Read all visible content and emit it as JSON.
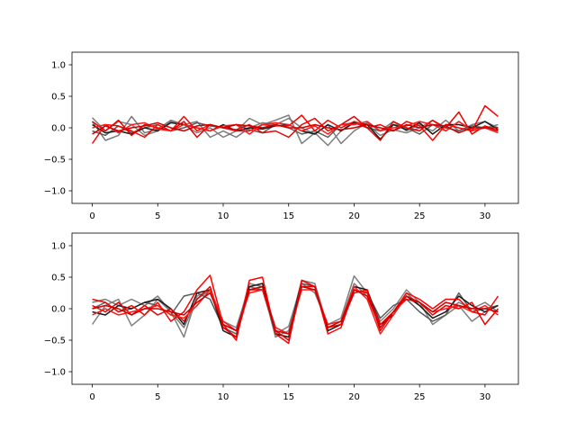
{
  "chart_data": [
    {
      "type": "line",
      "title": "",
      "xlabel": "",
      "ylabel": "",
      "xlim": [
        -1.55,
        32.55
      ],
      "ylim": [
        -1.2,
        1.2
      ],
      "xticks": [
        0,
        5,
        10,
        15,
        20,
        25,
        30
      ],
      "yticks": [
        -1.0,
        -0.5,
        0.0,
        0.5,
        1.0
      ],
      "ytick_labels": [
        "−1.0",
        "−0.5",
        "0.0",
        "0.5",
        "1.0"
      ],
      "grid": false,
      "legend": "none",
      "x": [
        0,
        1,
        2,
        3,
        4,
        5,
        6,
        7,
        8,
        9,
        10,
        11,
        12,
        13,
        14,
        15,
        16,
        17,
        18,
        19,
        20,
        21,
        22,
        23,
        24,
        25,
        26,
        27,
        28,
        29,
        30,
        31
      ],
      "series": [
        {
          "color": "#808080",
          "values": [
            0.16,
            -0.05,
            0.1,
            0.05,
            -0.12,
            -0.05,
            0.1,
            0.05,
            -0.08,
            0.0,
            -0.15,
            -0.05,
            0.15,
            0.05,
            0.12,
            0.2,
            -0.25,
            -0.08,
            -0.28,
            -0.05,
            0.1,
            0.05,
            -0.12,
            -0.03,
            -0.08,
            0.0,
            0.12,
            -0.05,
            0.1,
            -0.03,
            0.0,
            0.05
          ]
        },
        {
          "color": "#7a7a7a",
          "values": [
            0.1,
            -0.2,
            -0.12,
            0.18,
            -0.08,
            -0.02,
            0.12,
            0.05,
            0.1,
            -0.15,
            -0.05,
            -0.15,
            0.0,
            0.08,
            0.05,
            0.15,
            0.0,
            -0.1,
            0.05,
            -0.25,
            -0.05,
            0.08,
            -0.05,
            0.1,
            -0.05,
            0.05,
            -0.05,
            0.12,
            -0.05,
            0.05,
            0.1,
            0.0
          ]
        },
        {
          "color": "#5a5a5a",
          "values": [
            -0.05,
            -0.12,
            0.03,
            -0.08,
            0.0,
            0.05,
            -0.05,
            0.0,
            0.08,
            0.03,
            0.0,
            0.05,
            -0.03,
            -0.08,
            0.05,
            0.0,
            -0.1,
            -0.05,
            -0.15,
            0.05,
            0.08,
            0.0,
            -0.05,
            0.05,
            0.0,
            -0.1,
            0.05,
            0.0,
            -0.05,
            0.03,
            0.0,
            -0.05
          ]
        },
        {
          "color": "#1a1a1a",
          "values": [
            0.05,
            -0.08,
            -0.05,
            -0.1,
            0.0,
            -0.05,
            0.08,
            0.05,
            0.0,
            -0.05,
            0.05,
            -0.05,
            0.0,
            -0.02,
            0.03,
            0.05,
            -0.05,
            -0.1,
            0.05,
            -0.05,
            0.08,
            0.05,
            -0.18,
            0.05,
            -0.03,
            0.08,
            -0.1,
            0.05,
            0.05,
            0.0,
            0.1,
            -0.03
          ]
        },
        {
          "color": "#ff0000",
          "values": [
            -0.25,
            0.05,
            0.03,
            -0.05,
            -0.15,
            0.05,
            -0.05,
            0.18,
            -0.05,
            0.05,
            0.0,
            -0.05,
            -0.05,
            0.05,
            0.03,
            0.03,
            0.2,
            -0.05,
            0.12,
            0.0,
            0.1,
            0.0,
            0.05,
            -0.05,
            0.1,
            0.03,
            -0.2,
            0.05,
            0.0,
            -0.05,
            0.35,
            0.18
          ]
        },
        {
          "color": "#e80000",
          "values": [
            0.1,
            -0.05,
            0.12,
            -0.12,
            0.05,
            0.0,
            -0.05,
            0.1,
            -0.15,
            0.05,
            0.0,
            -0.03,
            0.05,
            -0.08,
            -0.05,
            -0.15,
            0.05,
            0.15,
            -0.05,
            0.05,
            0.18,
            0.0,
            -0.2,
            0.1,
            0.0,
            -0.05,
            0.12,
            0.0,
            0.25,
            -0.1,
            0.03,
            -0.05
          ]
        },
        {
          "color": "#ff1a1a",
          "values": [
            0.0,
            0.05,
            -0.08,
            0.05,
            0.08,
            -0.02,
            -0.05,
            0.05,
            0.0,
            -0.05,
            0.03,
            0.05,
            -0.1,
            0.05,
            0.08,
            0.05,
            -0.05,
            0.03,
            -0.1,
            0.05,
            0.05,
            0.1,
            -0.05,
            0.0,
            0.03,
            0.1,
            0.05,
            -0.05,
            0.1,
            -0.05,
            0.0,
            -0.08
          ]
        },
        {
          "color": "#cc0000",
          "values": [
            -0.1,
            0.03,
            -0.05,
            0.0,
            0.03,
            0.08,
            0.0,
            -0.05,
            0.03,
            0.05,
            0.0,
            0.05,
            0.03,
            0.0,
            0.05,
            0.0,
            0.0,
            0.05,
            0.0,
            -0.03,
            0.0,
            0.05,
            0.0,
            -0.05,
            0.05,
            0.0,
            0.05,
            0.03,
            -0.08,
            0.0,
            0.0,
            0.0
          ]
        }
      ]
    },
    {
      "type": "line",
      "title": "",
      "xlabel": "",
      "ylabel": "",
      "xlim": [
        -1.55,
        32.55
      ],
      "ylim": [
        -1.2,
        1.2
      ],
      "xticks": [
        0,
        5,
        10,
        15,
        20,
        25,
        30
      ],
      "yticks": [
        -1.0,
        -0.5,
        0.0,
        0.5,
        1.0
      ],
      "ytick_labels": [
        "−1.0",
        "−0.5",
        "0.0",
        "0.5",
        "1.0"
      ],
      "grid": false,
      "legend": "none",
      "x": [
        0,
        1,
        2,
        3,
        4,
        5,
        6,
        7,
        8,
        9,
        10,
        11,
        12,
        13,
        14,
        15,
        16,
        17,
        18,
        19,
        20,
        21,
        22,
        23,
        24,
        25,
        26,
        27,
        28,
        29,
        30,
        31
      ],
      "series": [
        {
          "color": "#808080",
          "values": [
            -0.25,
            0.05,
            0.15,
            -0.27,
            -0.1,
            0.15,
            -0.05,
            -0.45,
            0.2,
            0.3,
            -0.2,
            -0.3,
            0.35,
            0.3,
            -0.4,
            -0.28,
            0.4,
            0.25,
            -0.25,
            -0.15,
            0.52,
            0.25,
            -0.2,
            0.0,
            0.3,
            0.1,
            -0.25,
            -0.1,
            0.05,
            -0.2,
            -0.05,
            0.05
          ]
        },
        {
          "color": "#7a7a7a",
          "values": [
            0.1,
            0.15,
            0.05,
            0.15,
            0.05,
            0.2,
            -0.05,
            -0.3,
            0.15,
            0.3,
            -0.25,
            -0.35,
            0.4,
            0.35,
            -0.45,
            -0.35,
            0.45,
            0.4,
            -0.3,
            -0.2,
            0.4,
            0.2,
            -0.25,
            -0.1,
            0.25,
            0.05,
            -0.15,
            -0.05,
            0.1,
            0.0,
            0.1,
            -0.05
          ]
        },
        {
          "color": "#5a5a5a",
          "values": [
            0.0,
            0.1,
            -0.05,
            0.0,
            0.1,
            0.05,
            -0.1,
            0.2,
            0.25,
            0.15,
            -0.3,
            -0.4,
            0.3,
            0.35,
            -0.3,
            -0.4,
            0.4,
            0.35,
            -0.35,
            -0.25,
            0.3,
            0.25,
            -0.15,
            0.05,
            0.15,
            -0.05,
            -0.2,
            -0.1,
            0.25,
            -0.05,
            0.0,
            0.05
          ]
        },
        {
          "color": "#1a1a1a",
          "values": [
            -0.05,
            -0.1,
            0.05,
            0.0,
            0.1,
            0.15,
            0.0,
            -0.25,
            0.25,
            0.3,
            -0.35,
            -0.45,
            0.35,
            0.4,
            -0.4,
            -0.45,
            0.45,
            0.35,
            -0.35,
            -0.25,
            0.35,
            0.3,
            -0.25,
            -0.1,
            0.2,
            0.05,
            -0.15,
            -0.05,
            0.2,
            0.05,
            -0.05,
            0.05
          ]
        },
        {
          "color": "#ff0000",
          "values": [
            0.15,
            0.1,
            -0.05,
            0.05,
            -0.1,
            0.1,
            -0.2,
            -0.05,
            0.3,
            0.53,
            -0.25,
            -0.5,
            0.45,
            0.5,
            -0.4,
            -0.55,
            0.45,
            0.35,
            -0.4,
            -0.3,
            0.3,
            0.25,
            -0.25,
            -0.05,
            0.25,
            0.15,
            0.0,
            0.15,
            0.15,
            -0.05,
            -0.1,
            0.2
          ]
        },
        {
          "color": "#e80000",
          "values": [
            0.05,
            -0.05,
            0.1,
            -0.1,
            0.05,
            -0.1,
            0.0,
            -0.2,
            0.15,
            0.35,
            -0.3,
            -0.45,
            0.3,
            0.3,
            -0.35,
            -0.5,
            0.35,
            0.35,
            -0.3,
            -0.25,
            0.25,
            0.3,
            -0.35,
            -0.05,
            0.15,
            0.1,
            -0.1,
            0.05,
            0.0,
            0.1,
            -0.25,
            0.0
          ]
        },
        {
          "color": "#ff1a1a",
          "values": [
            -0.1,
            0.0,
            -0.1,
            -0.05,
            0.0,
            0.05,
            -0.1,
            -0.15,
            0.05,
            0.3,
            -0.2,
            -0.35,
            0.25,
            0.3,
            -0.3,
            -0.4,
            0.3,
            0.3,
            -0.25,
            -0.2,
            0.35,
            0.15,
            -0.4,
            -0.1,
            0.2,
            0.1,
            -0.05,
            0.0,
            0.05,
            -0.05,
            0.05,
            -0.1
          ]
        },
        {
          "color": "#cc0000",
          "values": [
            0.0,
            0.05,
            0.0,
            -0.1,
            0.0,
            0.0,
            -0.05,
            -0.1,
            0.1,
            0.25,
            -0.25,
            -0.35,
            0.3,
            0.35,
            -0.35,
            -0.4,
            0.35,
            0.3,
            -0.3,
            -0.2,
            0.3,
            0.2,
            -0.3,
            -0.05,
            0.2,
            0.1,
            -0.05,
            0.1,
            0.05,
            0.0,
            0.0,
            -0.05
          ]
        }
      ]
    }
  ]
}
